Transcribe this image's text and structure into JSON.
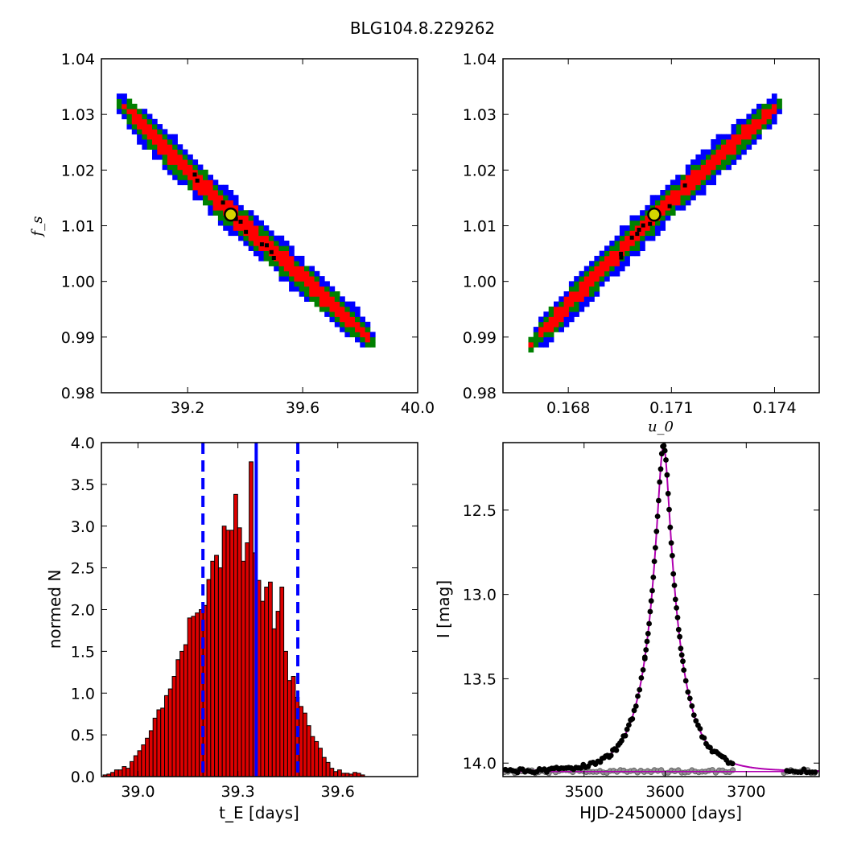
{
  "figure": {
    "title": "BLG104.8.229262"
  },
  "colors": {
    "sigma1": "#ff0000",
    "sigma2": "#008000",
    "sigma3": "#0000ff",
    "best_fill": "#d4d400",
    "model_line": "#b000b0",
    "hist_bar": "#dd0000",
    "baseline_points": "#909090"
  },
  "chart_data": [
    {
      "id": "tE-fs",
      "type": "heatmap",
      "xlabel": "",
      "ylabel": "f_s",
      "xlim": [
        38.9,
        40.0
      ],
      "ylim": [
        0.98,
        1.04
      ],
      "xticks": [
        39.2,
        39.6,
        40.0
      ],
      "xticklabels": [
        "39.2",
        "39.6",
        "40.0"
      ],
      "yticks": [
        0.98,
        0.99,
        1.0,
        1.01,
        1.02,
        1.03,
        1.04
      ],
      "yticklabels": [
        "0.98",
        "0.99",
        "1.00",
        "1.01",
        "1.02",
        "1.03",
        "1.04"
      ],
      "ridge": [
        [
          38.97,
          1.0315
        ],
        [
          39.35,
          1.012
        ],
        [
          39.82,
          0.99
        ]
      ],
      "halfwidth_y": {
        "sigma3": 0.0035,
        "sigma2": 0.0025,
        "sigma1": 0.0015
      },
      "best_fit": [
        39.35,
        1.012
      ]
    },
    {
      "id": "u0-fs",
      "type": "heatmap",
      "xlabel": "u_0",
      "ylabel": "",
      "xlim": [
        0.1661,
        0.1753
      ],
      "ylim": [
        0.98,
        1.04
      ],
      "xticks": [
        0.168,
        0.171,
        0.174
      ],
      "xticklabels": [
        "0.168",
        "0.171",
        "0.174"
      ],
      "yticks": [
        0.98,
        0.99,
        1.0,
        1.01,
        1.02,
        1.03,
        1.04
      ],
      "yticklabels": [
        "0.98",
        "0.99",
        "1.00",
        "1.01",
        "1.02",
        "1.03",
        "1.04"
      ],
      "ridge": [
        [
          0.167,
          0.9895
        ],
        [
          0.1705,
          1.012
        ],
        [
          0.174,
          1.0315
        ]
      ],
      "halfwidth_y": {
        "sigma3": 0.0035,
        "sigma2": 0.0025,
        "sigma1": 0.0015
      },
      "best_fit": [
        0.1705,
        1.012
      ]
    },
    {
      "id": "tE-hist",
      "type": "bar",
      "xlabel": "t_E [days]",
      "ylabel": "normed N",
      "xlim": [
        38.89,
        39.84
      ],
      "ylim": [
        0,
        4.0
      ],
      "xticks": [
        39.0,
        39.3,
        39.6
      ],
      "xticklabels": [
        "39.0",
        "39.3",
        "39.6"
      ],
      "yticks": [
        0,
        0.5,
        1.0,
        1.5,
        2.0,
        2.5,
        3.0,
        3.5,
        4.0
      ],
      "yticklabels": [
        "0.0",
        "0.5",
        "1.0",
        "1.5",
        "2.0",
        "2.5",
        "3.0",
        "3.5",
        "4.0"
      ],
      "bin_start": 38.895,
      "bin_width": 0.01155,
      "values": [
        0.02,
        0.03,
        0.05,
        0.08,
        0.08,
        0.12,
        0.1,
        0.18,
        0.25,
        0.31,
        0.38,
        0.46,
        0.55,
        0.7,
        0.8,
        0.82,
        0.97,
        1.05,
        1.2,
        1.4,
        1.5,
        1.58,
        1.9,
        1.92,
        1.96,
        2.0,
        2.05,
        2.36,
        2.58,
        2.65,
        2.5,
        3.0,
        2.95,
        2.95,
        3.38,
        2.98,
        2.58,
        2.8,
        3.77,
        2.68,
        2.35,
        2.1,
        2.27,
        2.33,
        1.77,
        1.98,
        2.27,
        1.5,
        1.15,
        1.2,
        0.95,
        0.84,
        0.76,
        0.61,
        0.48,
        0.42,
        0.34,
        0.23,
        0.17,
        0.1,
        0.06,
        0.08,
        0.04,
        0.04,
        0.03,
        0.05,
        0.04,
        0.02
      ],
      "median": 39.355,
      "lower": 39.195,
      "upper": 39.48
    },
    {
      "id": "lightcurve",
      "type": "scatter",
      "xlabel": "HJD-2450000 [days]",
      "ylabel": "I [mag]",
      "xlim": [
        3400,
        3790
      ],
      "ylim": [
        14.08,
        12.1
      ],
      "xticks": [
        3500,
        3600,
        3700
      ],
      "xticklabels": [
        "3500",
        "3600",
        "3700"
      ],
      "yticks": [
        12.5,
        13.0,
        13.5,
        14.0
      ],
      "yticklabels": [
        "12.5",
        "13.0",
        "13.5",
        "14.0"
      ],
      "model": {
        "t0": 3598,
        "tE": 39.35,
        "u0": 0.1705,
        "baseline": 14.05
      },
      "residual_level": 14.05
    }
  ]
}
